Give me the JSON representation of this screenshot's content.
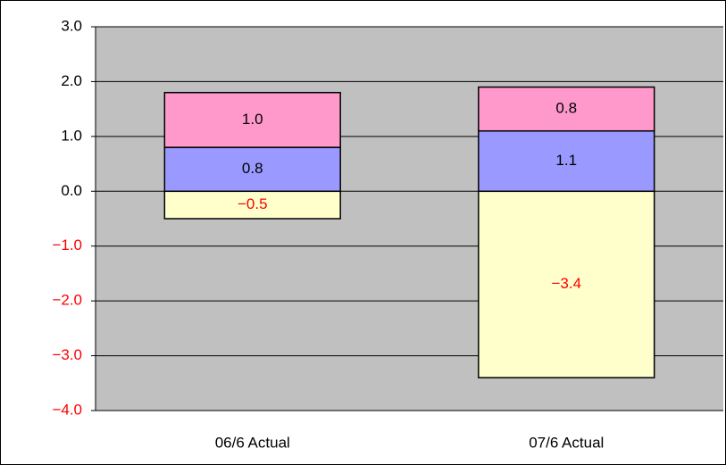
{
  "chart_data": {
    "type": "stacked_bar",
    "categories": [
      "06/6 Actual",
      "07/6 Actual"
    ],
    "series": [
      {
        "color": "#ffffcc",
        "values": [
          -0.5,
          -3.4
        ],
        "value_labels": [
          "−0.5",
          "−3.4"
        ]
      },
      {
        "color": "#9999ff",
        "values": [
          0.8,
          1.1
        ],
        "value_labels": [
          "0.8",
          "1.1"
        ]
      },
      {
        "color": "#ff99cc",
        "values": [
          1.0,
          0.8
        ],
        "value_labels": [
          "1.0",
          "0.8"
        ]
      }
    ],
    "ylim": [
      -4,
      3
    ],
    "yticks": [
      {
        "value": 3,
        "label": "3.0"
      },
      {
        "value": 2,
        "label": "2.0"
      },
      {
        "value": 1,
        "label": "1.0"
      },
      {
        "value": 0,
        "label": "0.0"
      },
      {
        "value": -1,
        "label": "−1.0"
      },
      {
        "value": -2,
        "label": "−2.0"
      },
      {
        "value": -3,
        "label": "−3.0"
      },
      {
        "value": -4,
        "label": "−4.0"
      }
    ],
    "grid": true,
    "plot_background": "#c0c0c0",
    "negative_label_color": "#ff0000"
  }
}
